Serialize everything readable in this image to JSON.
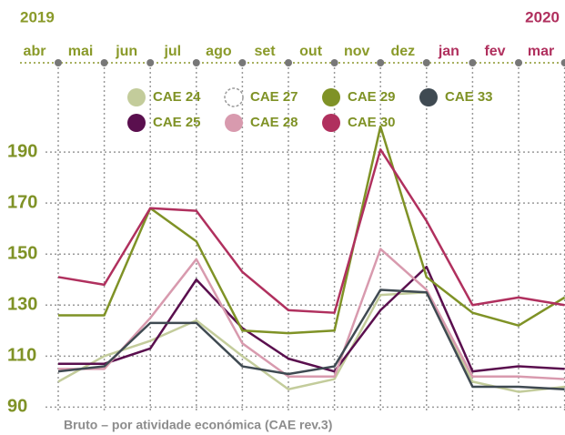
{
  "chart_data": {
    "type": "line",
    "years": [
      {
        "label": "2019",
        "color": "#8a9a2a"
      },
      {
        "label": "2020",
        "color": "#b0305e"
      }
    ],
    "categories": [
      "abr",
      "mai",
      "jun",
      "jul",
      "ago",
      "set",
      "out",
      "nov",
      "dez",
      "jan",
      "fev",
      "mar"
    ],
    "category_colors": [
      "#8a9a2a",
      "#8a9a2a",
      "#8a9a2a",
      "#8a9a2a",
      "#8a9a2a",
      "#8a9a2a",
      "#8a9a2a",
      "#8a9a2a",
      "#8a9a2a",
      "#b0305e",
      "#b0305e",
      "#b0305e"
    ],
    "series": [
      {
        "name": "CAE 24",
        "color": "#c3cc9b",
        "values": [
          100,
          110,
          116,
          124,
          110,
          97,
          101,
          134,
          135,
          100,
          96,
          98
        ]
      },
      {
        "name": "CAE 25",
        "color": "#5a0f4e",
        "values": [
          107,
          107,
          113,
          140,
          121,
          109,
          104,
          128,
          145,
          104,
          106,
          105
        ]
      },
      {
        "name": "CAE 27",
        "color": "#ffffff",
        "outline": "#9a9a9a",
        "values": [
          null,
          null,
          null,
          null,
          null,
          null,
          null,
          null,
          null,
          null,
          null,
          null
        ]
      },
      {
        "name": "CAE 28",
        "color": "#d89aae",
        "values": [
          105,
          105,
          125,
          148,
          115,
          102,
          102,
          152,
          136,
          102,
          102,
          101
        ]
      },
      {
        "name": "CAE 29",
        "color": "#7f9226",
        "values": [
          126,
          126,
          168,
          155,
          120,
          119,
          120,
          200,
          141,
          127,
          122,
          133
        ]
      },
      {
        "name": "CAE 30",
        "color": "#b0305e",
        "values": [
          141,
          138,
          168,
          167,
          143,
          128,
          127,
          191,
          163,
          130,
          133,
          130
        ]
      },
      {
        "name": "CAE 33",
        "color": "#3f4a52",
        "values": [
          104,
          106,
          123,
          123,
          106,
          103,
          106,
          136,
          135,
          98,
          98,
          97
        ]
      }
    ],
    "ylim": [
      88,
      225
    ],
    "yticks": [
      90,
      110,
      130,
      150,
      170,
      190
    ],
    "grid": true,
    "footnote": "Bruto – por atividade económica (CAE rev.3)"
  }
}
